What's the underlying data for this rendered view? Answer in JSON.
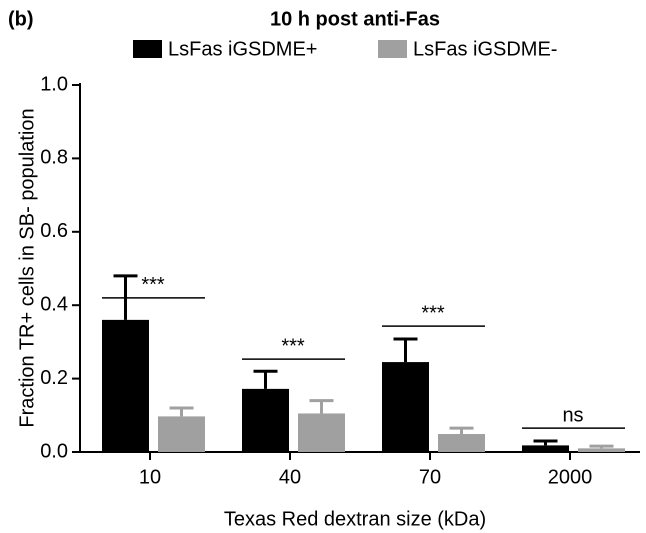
{
  "chart_data": {
    "type": "bar",
    "panel_label": "(b)",
    "title": "10 h post anti-Fas",
    "x_label": "Texas Red dextran size (kDa)",
    "y_label": "Fraction TR+ cells in SB- population",
    "categories": [
      "10",
      "40",
      "70",
      "2000"
    ],
    "series": [
      {
        "name": "LsFas iGSDME+",
        "color": "#000000",
        "values": [
          0.36,
          0.172,
          0.245,
          0.018
        ],
        "errors": [
          0.12,
          0.048,
          0.063,
          0.012
        ]
      },
      {
        "name": "LsFas iGSDME-",
        "color": "#a0a0a0",
        "values": [
          0.097,
          0.105,
          0.049,
          0.01
        ],
        "errors": [
          0.023,
          0.035,
          0.016,
          0.006
        ]
      }
    ],
    "annotations": [
      {
        "text": "***",
        "category": 0,
        "y": 0.42
      },
      {
        "text": "***",
        "category": 1,
        "y": 0.253
      },
      {
        "text": "***",
        "category": 2,
        "y": 0.343
      },
      {
        "text": "ns",
        "category": 3,
        "y": 0.065
      }
    ],
    "ylim": [
      0,
      1
    ],
    "yticks": [
      {
        "value": 0,
        "label": "0.0"
      },
      0.2,
      0.4,
      0.6,
      0.8,
      {
        "value": 1,
        "label": "1.0"
      }
    ],
    "grid": false,
    "legend": "top"
  }
}
